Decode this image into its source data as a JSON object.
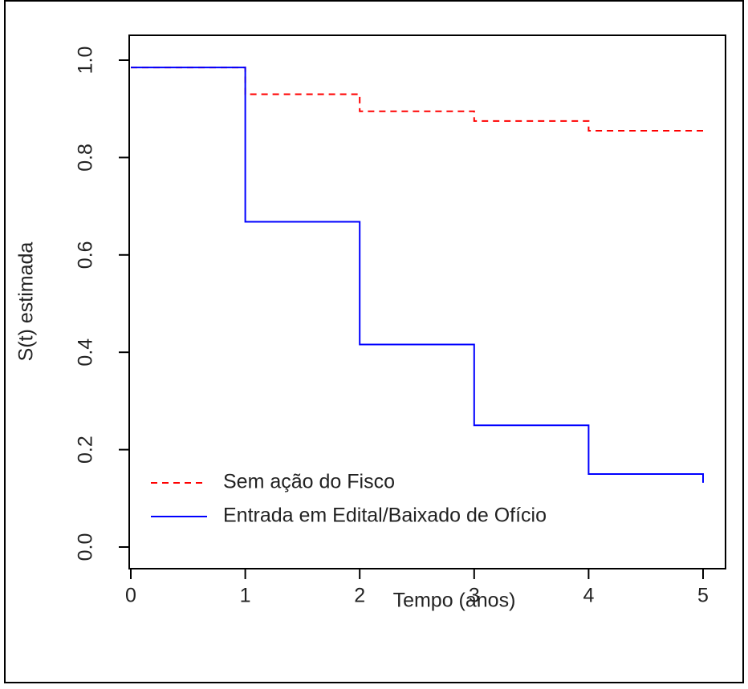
{
  "chart_data": {
    "type": "line",
    "subtype": "step",
    "xlabel": "Tempo (anos)",
    "ylabel": "S(t) estimada",
    "xlim": [
      0,
      5
    ],
    "ylim": [
      0,
      1
    ],
    "xticks": [
      "0",
      "1",
      "2",
      "3",
      "4",
      "5"
    ],
    "yticks": [
      "0.0",
      "0.2",
      "0.4",
      "0.6",
      "0.8",
      "1.0"
    ],
    "grid": false,
    "legend_position": "bottom-left",
    "series": [
      {
        "name": "Sem ação do Fisco",
        "color": "#ff0000",
        "linestyle": "dashed",
        "steps": [
          {
            "x": 0,
            "y": 0.985
          },
          {
            "x": 1,
            "y": 0.93
          },
          {
            "x": 2,
            "y": 0.895
          },
          {
            "x": 3,
            "y": 0.875
          },
          {
            "x": 4,
            "y": 0.855
          },
          {
            "x": 5,
            "y": 0.855
          }
        ]
      },
      {
        "name": "Entrada em Edital/Baixado de Ofício",
        "color": "#0000ff",
        "linestyle": "solid",
        "steps": [
          {
            "x": 0,
            "y": 0.985
          },
          {
            "x": 1,
            "y": 0.668
          },
          {
            "x": 2,
            "y": 0.416
          },
          {
            "x": 3,
            "y": 0.25
          },
          {
            "x": 4,
            "y": 0.15
          },
          {
            "x": 5,
            "y": 0.132
          }
        ]
      }
    ]
  }
}
